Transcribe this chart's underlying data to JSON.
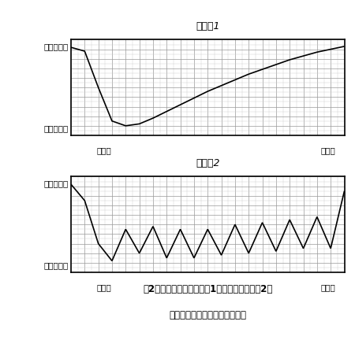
{
  "title1": "グラフ1",
  "title2": "グラフ2",
  "ylabel_top": "とてもよい",
  "ylabel_bottom_chars": [
    "ひ",
    "ど",
    "い"
  ],
  "xlabel_left": "診　断",
  "xlabel_right": "現　在",
  "graph1_x": [
    0,
    1,
    2,
    3,
    4,
    5,
    6,
    7,
    8,
    9,
    10,
    11,
    12,
    13,
    14,
    15,
    16,
    17,
    18,
    19,
    20
  ],
  "graph1_y": [
    9.2,
    8.8,
    5.0,
    1.5,
    1.0,
    1.2,
    1.8,
    2.5,
    3.2,
    3.9,
    4.6,
    5.2,
    5.8,
    6.4,
    6.9,
    7.4,
    7.9,
    8.3,
    8.7,
    9.0,
    9.3
  ],
  "graph2_x": [
    0,
    1,
    2,
    3,
    4,
    5,
    6,
    7,
    8,
    9,
    10,
    11,
    12,
    13,
    14,
    15,
    16,
    17,
    18,
    19,
    20
  ],
  "graph2_y": [
    9.2,
    7.5,
    3.0,
    1.2,
    4.5,
    2.0,
    4.8,
    1.5,
    4.5,
    1.5,
    4.5,
    1.8,
    5.0,
    2.0,
    5.2,
    2.2,
    5.5,
    2.5,
    5.8,
    2.5,
    8.5
  ],
  "ylim": [
    0,
    10
  ],
  "xlim": [
    0,
    20
  ],
  "grid_color": "#999999",
  "grid_minor_color": "#cccccc",
  "line_color": "#000000",
  "bg_color": "#ffffff",
  "caption_line1": "図2　経過・躍進（グラフ1）と波状（グラフ2）",
  "caption_line2": "の適応のパターンを表すグラフ",
  "font_size_title": 9,
  "font_size_label": 7.5,
  "font_size_caption": 8.5,
  "font_size_caption_bold": 9
}
